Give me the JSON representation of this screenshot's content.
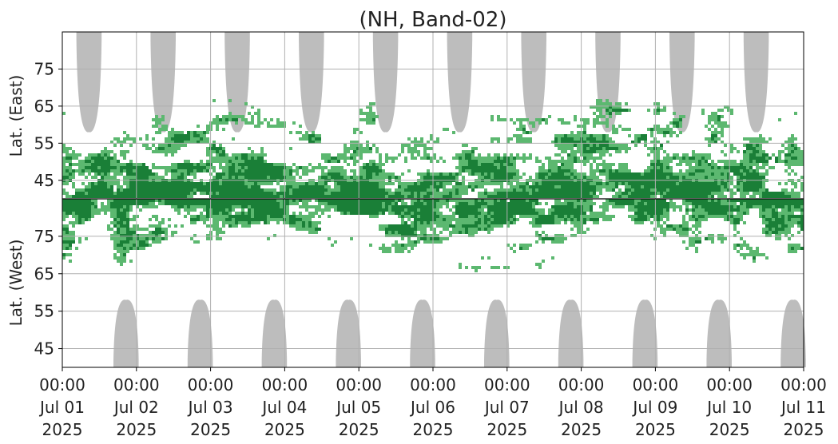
{
  "chart_data": {
    "type": "heatmap",
    "title": "(NH, Band-02)",
    "upper_ylabel": "Lat. (East)",
    "lower_ylabel": "Lat. (West)",
    "upper_yticks": [
      "45",
      "55",
      "65",
      "75"
    ],
    "lower_yticks": [
      "75",
      "65",
      "55",
      "45"
    ],
    "lat_range": [
      40,
      85
    ],
    "x_range": [
      "2025-07-01 00:00",
      "2025-07-11 00:00"
    ],
    "xticks": [
      {
        "time": "00:00",
        "date": "Jul 01",
        "year": "2025"
      },
      {
        "time": "00:00",
        "date": "Jul 02",
        "year": "2025"
      },
      {
        "time": "00:00",
        "date": "Jul 03",
        "year": "2025"
      },
      {
        "time": "00:00",
        "date": "Jul 04",
        "year": "2025"
      },
      {
        "time": "00:00",
        "date": "Jul 05",
        "year": "2025"
      },
      {
        "time": "00:00",
        "date": "Jul 06",
        "year": "2025"
      },
      {
        "time": "00:00",
        "date": "Jul 07",
        "year": "2025"
      },
      {
        "time": "00:00",
        "date": "Jul 08",
        "year": "2025"
      },
      {
        "time": "00:00",
        "date": "Jul 09",
        "year": "2025"
      },
      {
        "time": "00:00",
        "date": "Jul 10",
        "year": "2025"
      },
      {
        "time": "00:00",
        "date": "Jul 11",
        "year": "2025"
      }
    ],
    "grid": true,
    "colors": {
      "strong": "#1a7f37",
      "weak": "#5cb870",
      "no_data": "#bdbdbd",
      "grid": "#b0b0b0",
      "divider": "#000000"
    },
    "no_data_regions": [
      {
        "panel": "upper",
        "day_center": 0.36,
        "half_width_days": 0.17,
        "min_lat": 58
      },
      {
        "panel": "upper",
        "day_center": 1.36,
        "half_width_days": 0.17,
        "min_lat": 58
      },
      {
        "panel": "upper",
        "day_center": 2.36,
        "half_width_days": 0.17,
        "min_lat": 58
      },
      {
        "panel": "upper",
        "day_center": 3.36,
        "half_width_days": 0.17,
        "min_lat": 58
      },
      {
        "panel": "upper",
        "day_center": 4.36,
        "half_width_days": 0.17,
        "min_lat": 58
      },
      {
        "panel": "upper",
        "day_center": 5.36,
        "half_width_days": 0.17,
        "min_lat": 58
      },
      {
        "panel": "upper",
        "day_center": 6.36,
        "half_width_days": 0.17,
        "min_lat": 58
      },
      {
        "panel": "upper",
        "day_center": 7.36,
        "half_width_days": 0.17,
        "min_lat": 58
      },
      {
        "panel": "upper",
        "day_center": 8.36,
        "half_width_days": 0.17,
        "min_lat": 58
      },
      {
        "panel": "upper",
        "day_center": 9.36,
        "half_width_days": 0.17,
        "min_lat": 58
      },
      {
        "panel": "lower",
        "day_center": 0.86,
        "half_width_days": 0.17,
        "min_lat": 58
      },
      {
        "panel": "lower",
        "day_center": 1.86,
        "half_width_days": 0.17,
        "min_lat": 58
      },
      {
        "panel": "lower",
        "day_center": 2.86,
        "half_width_days": 0.17,
        "min_lat": 58
      },
      {
        "panel": "lower",
        "day_center": 3.86,
        "half_width_days": 0.17,
        "min_lat": 58
      },
      {
        "panel": "lower",
        "day_center": 4.86,
        "half_width_days": 0.17,
        "min_lat": 58
      },
      {
        "panel": "lower",
        "day_center": 5.86,
        "half_width_days": 0.17,
        "min_lat": 58
      },
      {
        "panel": "lower",
        "day_center": 6.86,
        "half_width_days": 0.17,
        "min_lat": 58
      },
      {
        "panel": "lower",
        "day_center": 7.86,
        "half_width_days": 0.17,
        "min_lat": 58
      },
      {
        "panel": "lower",
        "day_center": 8.86,
        "half_width_days": 0.17,
        "min_lat": 58
      },
      {
        "panel": "lower",
        "day_center": 9.86,
        "half_width_days": 0.17,
        "min_lat": 58
      }
    ],
    "activity_envelope": {
      "upper_min_lat_by_day": [
        {
          "day": 0.0,
          "lat": 65
        },
        {
          "day": 0.5,
          "lat": 60
        },
        {
          "day": 1.0,
          "lat": 62
        },
        {
          "day": 1.5,
          "lat": 70
        },
        {
          "day": 2.0,
          "lat": 72
        },
        {
          "day": 2.5,
          "lat": 70
        },
        {
          "day": 3.0,
          "lat": 65
        },
        {
          "day": 3.5,
          "lat": 62
        },
        {
          "day": 4.0,
          "lat": 70
        },
        {
          "day": 4.5,
          "lat": 62
        },
        {
          "day": 5.0,
          "lat": 58
        },
        {
          "day": 5.5,
          "lat": 63
        },
        {
          "day": 6.0,
          "lat": 62
        },
        {
          "day": 6.5,
          "lat": 66
        },
        {
          "day": 7.0,
          "lat": 70
        },
        {
          "day": 7.5,
          "lat": 72
        },
        {
          "day": 8.0,
          "lat": 66
        },
        {
          "day": 8.5,
          "lat": 64
        },
        {
          "day": 9.0,
          "lat": 67
        },
        {
          "day": 9.5,
          "lat": 60
        },
        {
          "day": 10.0,
          "lat": 66
        }
      ],
      "lower_min_lat_by_day": [
        {
          "day": 0.0,
          "lat": 66
        },
        {
          "day": 0.5,
          "lat": 72
        },
        {
          "day": 1.0,
          "lat": 63
        },
        {
          "day": 1.5,
          "lat": 68
        },
        {
          "day": 2.0,
          "lat": 74
        },
        {
          "day": 2.5,
          "lat": 70
        },
        {
          "day": 3.0,
          "lat": 74
        },
        {
          "day": 3.5,
          "lat": 72
        },
        {
          "day": 4.0,
          "lat": 74
        },
        {
          "day": 4.5,
          "lat": 67
        },
        {
          "day": 5.0,
          "lat": 68
        },
        {
          "day": 5.5,
          "lat": 66
        },
        {
          "day": 6.0,
          "lat": 63
        },
        {
          "day": 6.5,
          "lat": 67
        },
        {
          "day": 7.0,
          "lat": 74
        },
        {
          "day": 7.5,
          "lat": 75
        },
        {
          "day": 8.0,
          "lat": 72
        },
        {
          "day": 8.5,
          "lat": 70
        },
        {
          "day": 9.0,
          "lat": 72
        },
        {
          "day": 9.5,
          "lat": 64
        },
        {
          "day": 10.0,
          "lat": 70
        }
      ]
    }
  }
}
